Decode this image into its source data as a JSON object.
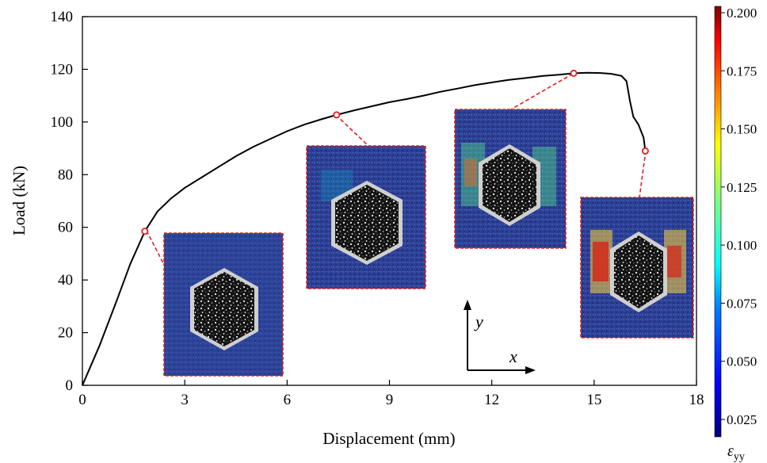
{
  "chart_data": {
    "type": "line",
    "xlabel": "Displacement (mm)",
    "ylabel": "Load (kN)",
    "xlim": [
      0,
      18
    ],
    "ylim": [
      0,
      140
    ],
    "x_ticks": [
      0,
      3,
      6,
      9,
      12,
      15,
      18
    ],
    "y_ticks": [
      0,
      20,
      40,
      60,
      80,
      100,
      120,
      140
    ],
    "grid": false,
    "series": [
      {
        "color": "#000000",
        "x": [
          0,
          0.5,
          1.0,
          1.4,
          1.83,
          2.2,
          2.6,
          3.0,
          3.5,
          4.0,
          4.5,
          5.0,
          5.5,
          6.0,
          6.5,
          7.0,
          7.45,
          8.0,
          8.5,
          9.0,
          9.5,
          10.0,
          10.5,
          11.0,
          11.5,
          12.0,
          12.5,
          13.0,
          13.5,
          14.0,
          14.4,
          14.8,
          15.2,
          15.5,
          15.8,
          15.95,
          16.05,
          16.15,
          16.3,
          16.45,
          16.5
        ],
        "y": [
          0,
          15,
          32,
          46,
          58.5,
          66,
          71,
          75,
          79,
          83,
          87,
          90.5,
          93.5,
          96.5,
          99,
          101,
          102.7,
          104.5,
          106,
          107.5,
          108.7,
          110,
          111.5,
          112.7,
          114,
          115,
          116,
          116.7,
          117.5,
          118,
          118.5,
          118.7,
          118.6,
          118.3,
          117.5,
          115.5,
          108,
          102,
          99,
          94,
          89
        ]
      }
    ],
    "markers": [
      {
        "x": 1.83,
        "y": 58.5
      },
      {
        "x": 7.45,
        "y": 102.7
      },
      {
        "x": 14.4,
        "y": 118.5
      },
      {
        "x": 16.5,
        "y": 89
      }
    ],
    "coordinate_axes": {
      "x_label": "x",
      "y_label": "y"
    },
    "colorbar": {
      "label": "ε",
      "label_subscript": "yy",
      "range": [
        0.025,
        0.2
      ],
      "ticks": [
        "0.025",
        "0.050",
        "0.075",
        "0.100",
        "0.125",
        "0.150",
        "0.175",
        "0.200"
      ],
      "colormap": [
        "#00007f",
        "#0000ff",
        "#007fff",
        "#00ffff",
        "#7fff7f",
        "#ffff00",
        "#ff7f00",
        "#ff0000",
        "#7f0000"
      ]
    },
    "colors": {
      "curve": "#000000",
      "marker": "#e02020",
      "leader": "#e02020",
      "inset_border": "#e02020",
      "inset_background": "#2a3f8f",
      "specimen_hole": "#111111"
    }
  }
}
